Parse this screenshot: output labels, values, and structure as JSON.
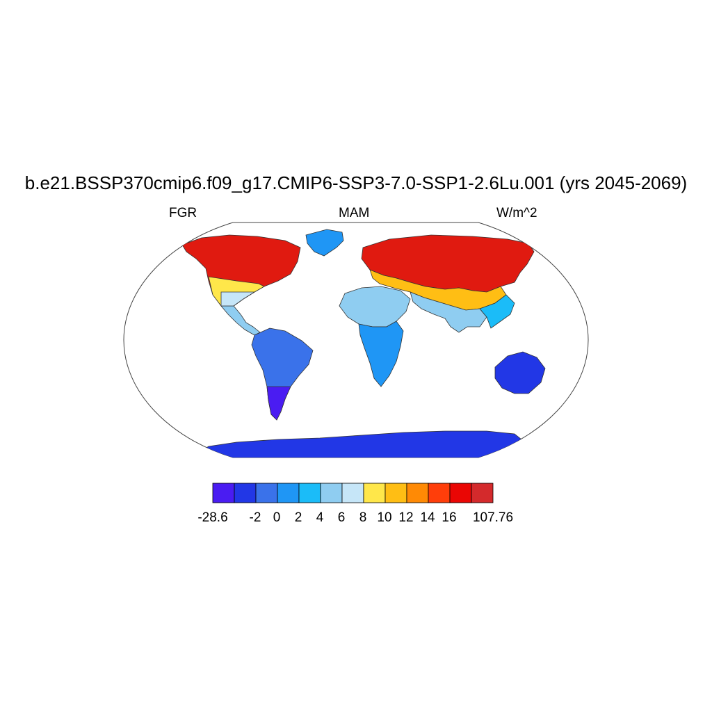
{
  "title": "b.e21.BSSP370cmip6.f09_g17.CMIP6-SSP3-7.0-SSP1-2.6Lu.001 (yrs 2045-2069)",
  "subtitle_left": "FGR",
  "subtitle_center": "MAM",
  "subtitle_right": "W/m^2",
  "colorbar": {
    "colors": [
      "#4a1cf2",
      "#2237e6",
      "#3a72ea",
      "#1f96f5",
      "#1bbcf8",
      "#8fcdf1",
      "#c6e6f8",
      "#ffe74a",
      "#ffbe14",
      "#ff8a05",
      "#ff3e0a",
      "#ea0604",
      "#d42a2c"
    ],
    "labels": [
      "-28.6",
      "-2",
      "0",
      "2",
      "4",
      "6",
      "8",
      "10",
      "12",
      "14",
      "16",
      "107.76"
    ]
  }
}
